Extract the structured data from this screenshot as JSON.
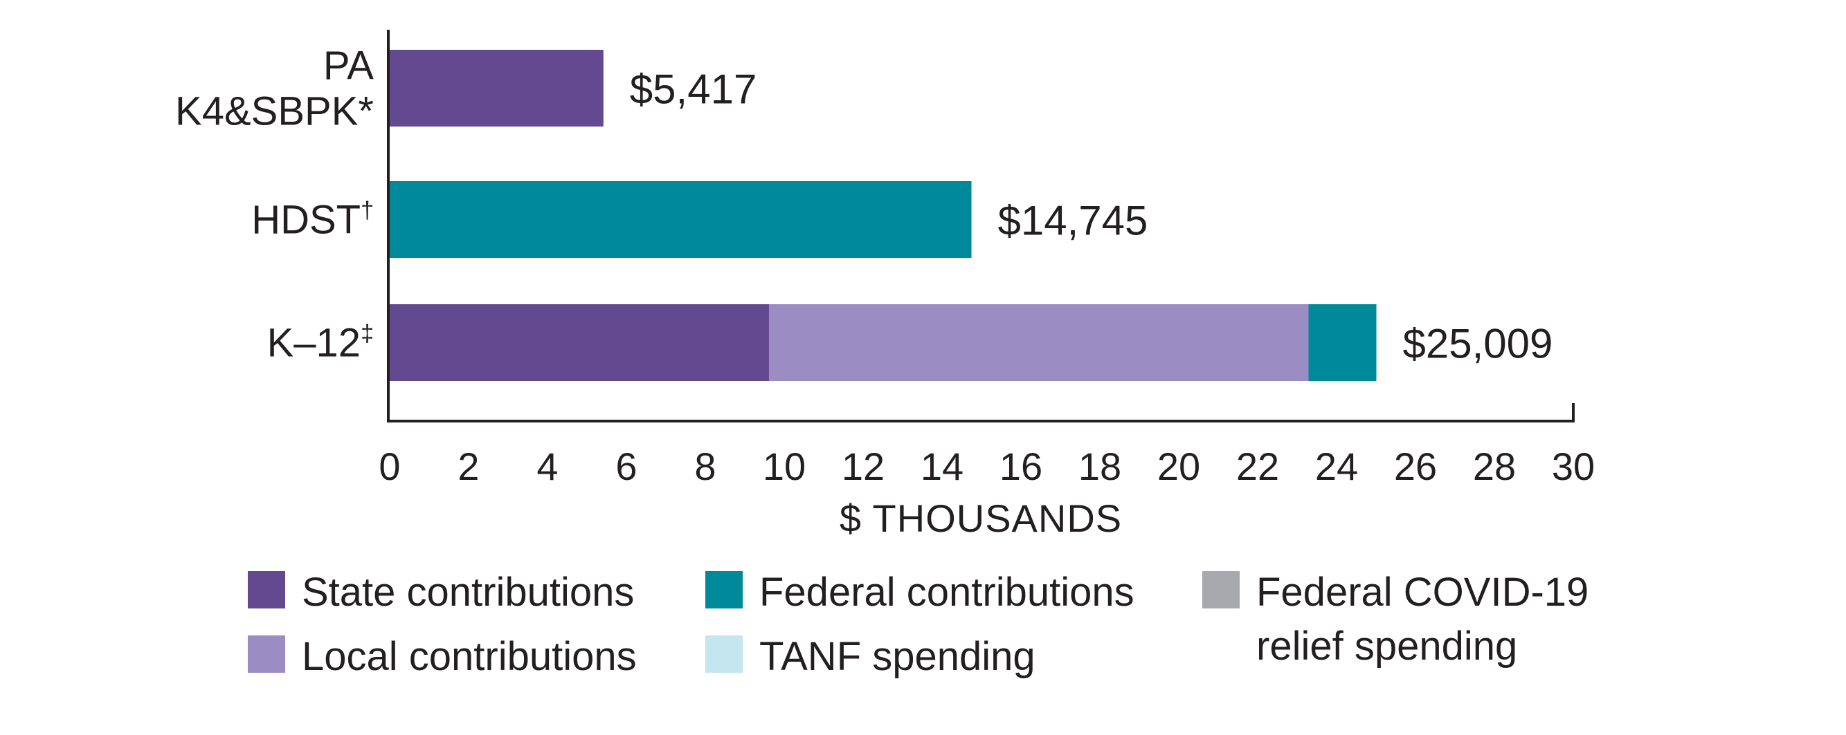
{
  "chart_data": {
    "type": "bar",
    "orientation": "horizontal",
    "stacked": true,
    "title": "",
    "xlabel": "$ THOUSANDS",
    "ylabel": "",
    "xlim": [
      0,
      30
    ],
    "x_ticks": [
      0,
      2,
      4,
      6,
      8,
      10,
      12,
      14,
      16,
      18,
      20,
      22,
      24,
      26,
      28,
      30
    ],
    "grid": false,
    "legend_position": "bottom",
    "categories": [
      {
        "lines": [
          "PA",
          "K4&SBPK*"
        ],
        "superscript": ""
      },
      {
        "lines": [
          "HDST"
        ],
        "superscript": "†"
      },
      {
        "lines": [
          "K–12"
        ],
        "superscript": "‡"
      }
    ],
    "series": [
      {
        "name": "State contributions",
        "color": "#63498f",
        "values": [
          5.417,
          0,
          9.62
        ]
      },
      {
        "name": "Local contributions",
        "color": "#9b8cc3",
        "values": [
          0,
          0,
          13.67
        ]
      },
      {
        "name": "Federal contributions",
        "color": "#00899b",
        "values": [
          0,
          14.745,
          1.72
        ]
      },
      {
        "name": "TANF spending",
        "color": "#c5e6ee",
        "values": [
          0,
          0,
          0
        ]
      },
      {
        "name": "Federal COVID-19 relief spending",
        "color": "#a7a9ac",
        "values": [
          0,
          0,
          0
        ]
      }
    ],
    "totals": [
      5.417,
      14.745,
      25.009
    ],
    "total_labels": [
      "$5,417",
      "$14,745",
      "$25,009"
    ],
    "legend": [
      {
        "lines": [
          "State contributions"
        ],
        "color": "#63498f"
      },
      {
        "lines": [
          "Federal contributions"
        ],
        "color": "#00899b"
      },
      {
        "lines": [
          "Federal COVID-19",
          "relief spending"
        ],
        "color": "#a7a9ac"
      },
      {
        "lines": [
          "Local contributions"
        ],
        "color": "#9b8cc3"
      },
      {
        "lines": [
          "TANF spending"
        ],
        "color": "#c5e6ee"
      }
    ]
  }
}
